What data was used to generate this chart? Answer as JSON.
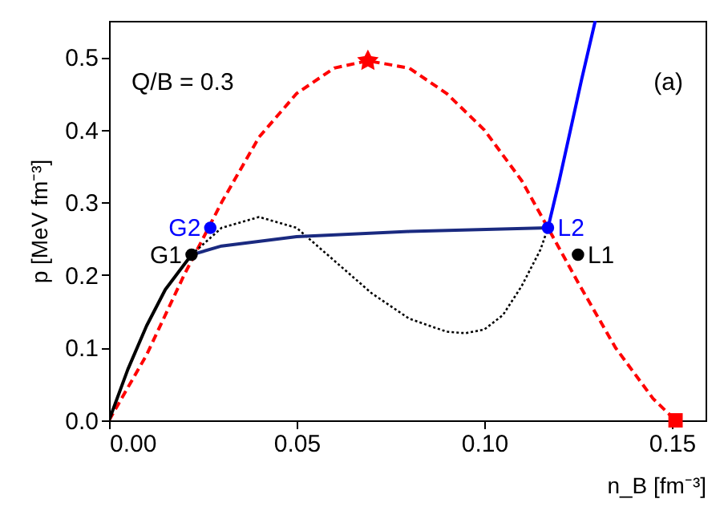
{
  "chart_data": {
    "type": "line",
    "xlabel": "n_B [fm⁻³]",
    "ylabel": "p [MeV fm⁻³]",
    "xlim": [
      0,
      0.159
    ],
    "ylim": [
      0,
      0.55
    ],
    "xticks": [
      {
        "value": 0,
        "label": "0.00"
      },
      0.05,
      {
        "value": 0.1,
        "label": "0.10"
      },
      0.15
    ],
    "yticks": [
      {
        "value": 0,
        "label": "0.0"
      },
      0.1,
      0.2,
      0.3,
      0.4,
      0.5
    ],
    "grid": false,
    "annotations": [
      "Q/B = 0.3",
      "(a)"
    ],
    "series": [
      {
        "line_style": "dashed",
        "color": "#ff0000",
        "x": [
          0,
          0.01,
          0.02,
          0.03,
          0.04,
          0.05,
          0.06,
          0.069,
          0.08,
          0.09,
          0.1,
          0.11,
          0.117,
          0.125,
          0.135,
          0.145,
          0.151
        ],
        "values": [
          0,
          0.09,
          0.2,
          0.3,
          0.39,
          0.45,
          0.485,
          0.495,
          0.485,
          0.45,
          0.4,
          0.33,
          0.265,
          0.19,
          0.1,
          0.03,
          0
        ]
      },
      {
        "line_style": "dotted",
        "color": "#000000",
        "x": [
          0.022,
          0.03,
          0.04,
          0.05,
          0.06,
          0.07,
          0.08,
          0.09,
          0.095,
          0.1,
          0.105,
          0.11,
          0.115,
          0.117
        ],
        "values": [
          0.228,
          0.265,
          0.28,
          0.265,
          0.22,
          0.175,
          0.14,
          0.122,
          0.12,
          0.125,
          0.145,
          0.185,
          0.235,
          0.265
        ]
      },
      {
        "line_style": "solid",
        "color": "#000000",
        "x": [
          0,
          0.005,
          0.01,
          0.015,
          0.022
        ],
        "values": [
          0,
          0.07,
          0.13,
          0.18,
          0.228
        ]
      },
      {
        "line_style": "solid",
        "color": "#1a2a80",
        "x": [
          0.022,
          0.03,
          0.05,
          0.08,
          0.117
        ],
        "values": [
          0.228,
          0.24,
          0.253,
          0.26,
          0.265
        ]
      },
      {
        "line_style": "solid",
        "color": "#0000ff",
        "x": [
          0.117,
          0.12,
          0.123,
          0.126,
          0.1296
        ],
        "values": [
          0.265,
          0.33,
          0.4,
          0.47,
          0.55
        ]
      },
      {
        "type": "scatter",
        "name": "G1",
        "marker": "circle",
        "color": "#000000",
        "x": [
          0.022
        ],
        "values": [
          0.228
        ]
      },
      {
        "type": "scatter",
        "name": "G2",
        "marker": "circle",
        "color": "#0000ff",
        "x": [
          0.027
        ],
        "values": [
          0.265
        ]
      },
      {
        "type": "scatter",
        "name": "L2",
        "marker": "circle",
        "color": "#0000ff",
        "x": [
          0.117
        ],
        "values": [
          0.265
        ]
      },
      {
        "type": "scatter",
        "name": "L1",
        "marker": "circle",
        "color": "#000000",
        "x": [
          0.125
        ],
        "values": [
          0.228
        ]
      },
      {
        "type": "scatter",
        "marker": "star",
        "color": "#ff0000",
        "x": [
          0.069
        ],
        "values": [
          0.495
        ]
      },
      {
        "type": "scatter",
        "marker": "square",
        "color": "#ff0000",
        "x": [
          0.151
        ],
        "values": [
          0
        ]
      }
    ]
  }
}
